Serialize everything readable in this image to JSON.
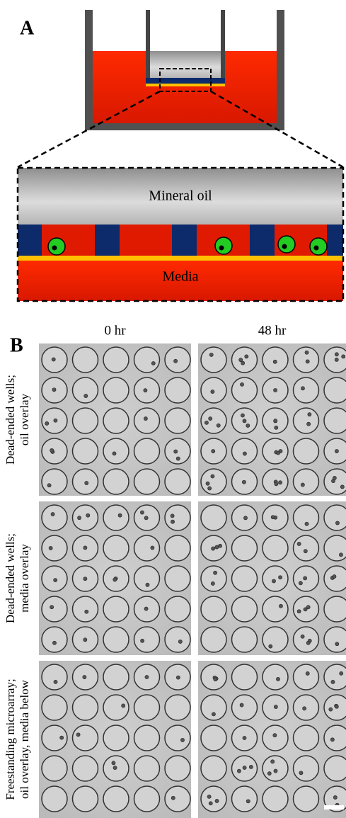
{
  "panel_a": {
    "label": "A",
    "oil_label": "Mineral oil",
    "media_label": "Media"
  },
  "panel_b": {
    "label": "B",
    "columns": [
      "0 hr",
      "48 hr"
    ],
    "rows": [
      [
        "Dead-ended wells;",
        "oil overlay"
      ],
      [
        "Dead-ended wells;",
        "media overlay"
      ],
      [
        "Freestanding microarray;",
        "oil overlay, media below"
      ]
    ]
  }
}
